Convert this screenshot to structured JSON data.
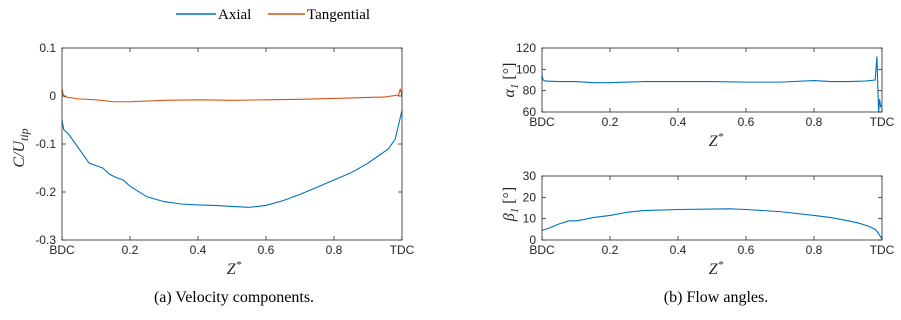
{
  "legend": {
    "entries": [
      {
        "name": "Axial",
        "color": "#0072BD"
      },
      {
        "name": "Tangential",
        "color": "#D95319"
      }
    ]
  },
  "chart_data": [
    {
      "type": "line",
      "caption": "(a) Velocity components.",
      "xlabel": "Z*",
      "ylabel": "C/U_tip",
      "xlim": [
        0,
        1
      ],
      "ylim": [
        -0.3,
        0.1
      ],
      "xticks": [
        {
          "v": 0,
          "label": "BDC"
        },
        {
          "v": 0.2,
          "label": "0.2"
        },
        {
          "v": 0.4,
          "label": "0.4"
        },
        {
          "v": 0.6,
          "label": "0.6"
        },
        {
          "v": 0.8,
          "label": "0.8"
        },
        {
          "v": 1,
          "label": "TDC"
        }
      ],
      "yticks": [
        {
          "v": 0.1,
          "label": "0.1"
        },
        {
          "v": 0,
          "label": "0"
        },
        {
          "v": -0.1,
          "label": "-0.1"
        },
        {
          "v": -0.2,
          "label": "-0.2"
        },
        {
          "v": -0.3,
          "label": "-0.3"
        }
      ],
      "grid": false,
      "series": [
        {
          "name": "Axial",
          "color": "#0072BD",
          "x": [
            0,
            0.005,
            0.02,
            0.04,
            0.06,
            0.08,
            0.1,
            0.12,
            0.14,
            0.16,
            0.18,
            0.2,
            0.25,
            0.3,
            0.35,
            0.4,
            0.45,
            0.5,
            0.55,
            0.6,
            0.65,
            0.7,
            0.75,
            0.8,
            0.85,
            0.9,
            0.93,
            0.96,
            0.98,
            0.99,
            1
          ],
          "y": [
            -0.05,
            -0.07,
            -0.08,
            -0.1,
            -0.12,
            -0.14,
            -0.145,
            -0.15,
            -0.163,
            -0.17,
            -0.175,
            -0.188,
            -0.21,
            -0.22,
            -0.225,
            -0.227,
            -0.228,
            -0.23,
            -0.232,
            -0.228,
            -0.218,
            -0.205,
            -0.19,
            -0.175,
            -0.16,
            -0.14,
            -0.125,
            -0.11,
            -0.09,
            -0.06,
            -0.03
          ]
        },
        {
          "name": "Tangential",
          "color": "#D95319",
          "x": [
            0,
            0.005,
            0.01,
            0.05,
            0.1,
            0.15,
            0.2,
            0.3,
            0.4,
            0.5,
            0.6,
            0.7,
            0.8,
            0.9,
            0.95,
            0.99,
            0.995,
            1
          ],
          "y": [
            0.015,
            0.0,
            -0.002,
            -0.006,
            -0.008,
            -0.012,
            -0.012,
            -0.009,
            -0.008,
            -0.009,
            -0.008,
            -0.007,
            -0.005,
            -0.003,
            -0.002,
            0.002,
            0.015,
            0.0
          ]
        }
      ]
    },
    {
      "type": "line",
      "caption": "(b) Flow angles.",
      "xlabel": "Z*",
      "ylabel": "α1 [°]",
      "xlim": [
        0,
        1
      ],
      "ylim": [
        60,
        120
      ],
      "xticks": [
        {
          "v": 0,
          "label": "BDC"
        },
        {
          "v": 0.2,
          "label": "0.2"
        },
        {
          "v": 0.4,
          "label": "0.4"
        },
        {
          "v": 0.6,
          "label": "0.6"
        },
        {
          "v": 0.8,
          "label": "0.8"
        },
        {
          "v": 1,
          "label": "TDC"
        }
      ],
      "yticks": [
        {
          "v": 120,
          "label": "120"
        },
        {
          "v": 100,
          "label": "100"
        },
        {
          "v": 80,
          "label": "80"
        },
        {
          "v": 60,
          "label": "60"
        }
      ],
      "grid": false,
      "series": [
        {
          "color": "#0072BD",
          "x": [
            0,
            0.003,
            0.01,
            0.05,
            0.1,
            0.15,
            0.2,
            0.3,
            0.4,
            0.5,
            0.6,
            0.7,
            0.8,
            0.85,
            0.9,
            0.95,
            0.98,
            0.985,
            0.99,
            0.993,
            0.996,
            1
          ],
          "y": [
            95,
            90,
            89,
            88.5,
            88.5,
            87.5,
            87.5,
            88.5,
            88.5,
            88.5,
            88,
            88,
            89.5,
            88.5,
            88.5,
            89,
            90,
            112,
            60,
            72,
            65,
            66
          ]
        }
      ]
    },
    {
      "type": "line",
      "xlabel": "Z*",
      "ylabel": "β1 [°]",
      "xlim": [
        0,
        1
      ],
      "ylim": [
        0,
        30
      ],
      "xticks": [
        {
          "v": 0,
          "label": "BDC"
        },
        {
          "v": 0.2,
          "label": "0.2"
        },
        {
          "v": 0.4,
          "label": "0.4"
        },
        {
          "v": 0.6,
          "label": "0.6"
        },
        {
          "v": 0.8,
          "label": "0.8"
        },
        {
          "v": 1,
          "label": "TDC"
        }
      ],
      "yticks": [
        {
          "v": 30,
          "label": "30"
        },
        {
          "v": 20,
          "label": "20"
        },
        {
          "v": 10,
          "label": "10"
        },
        {
          "v": 0,
          "label": "0"
        }
      ],
      "grid": false,
      "series": [
        {
          "color": "#0072BD",
          "x": [
            0,
            0.02,
            0.05,
            0.08,
            0.1,
            0.12,
            0.15,
            0.2,
            0.25,
            0.3,
            0.4,
            0.5,
            0.55,
            0.6,
            0.7,
            0.8,
            0.85,
            0.9,
            0.93,
            0.96,
            0.98,
            0.99,
            1
          ],
          "y": [
            4.5,
            5.5,
            7.5,
            9,
            9,
            9.5,
            10.5,
            11.5,
            13,
            13.8,
            14.3,
            14.5,
            14.6,
            14.3,
            13.3,
            11.5,
            10.5,
            9,
            8,
            6.5,
            5,
            3,
            0.5
          ]
        }
      ]
    }
  ]
}
